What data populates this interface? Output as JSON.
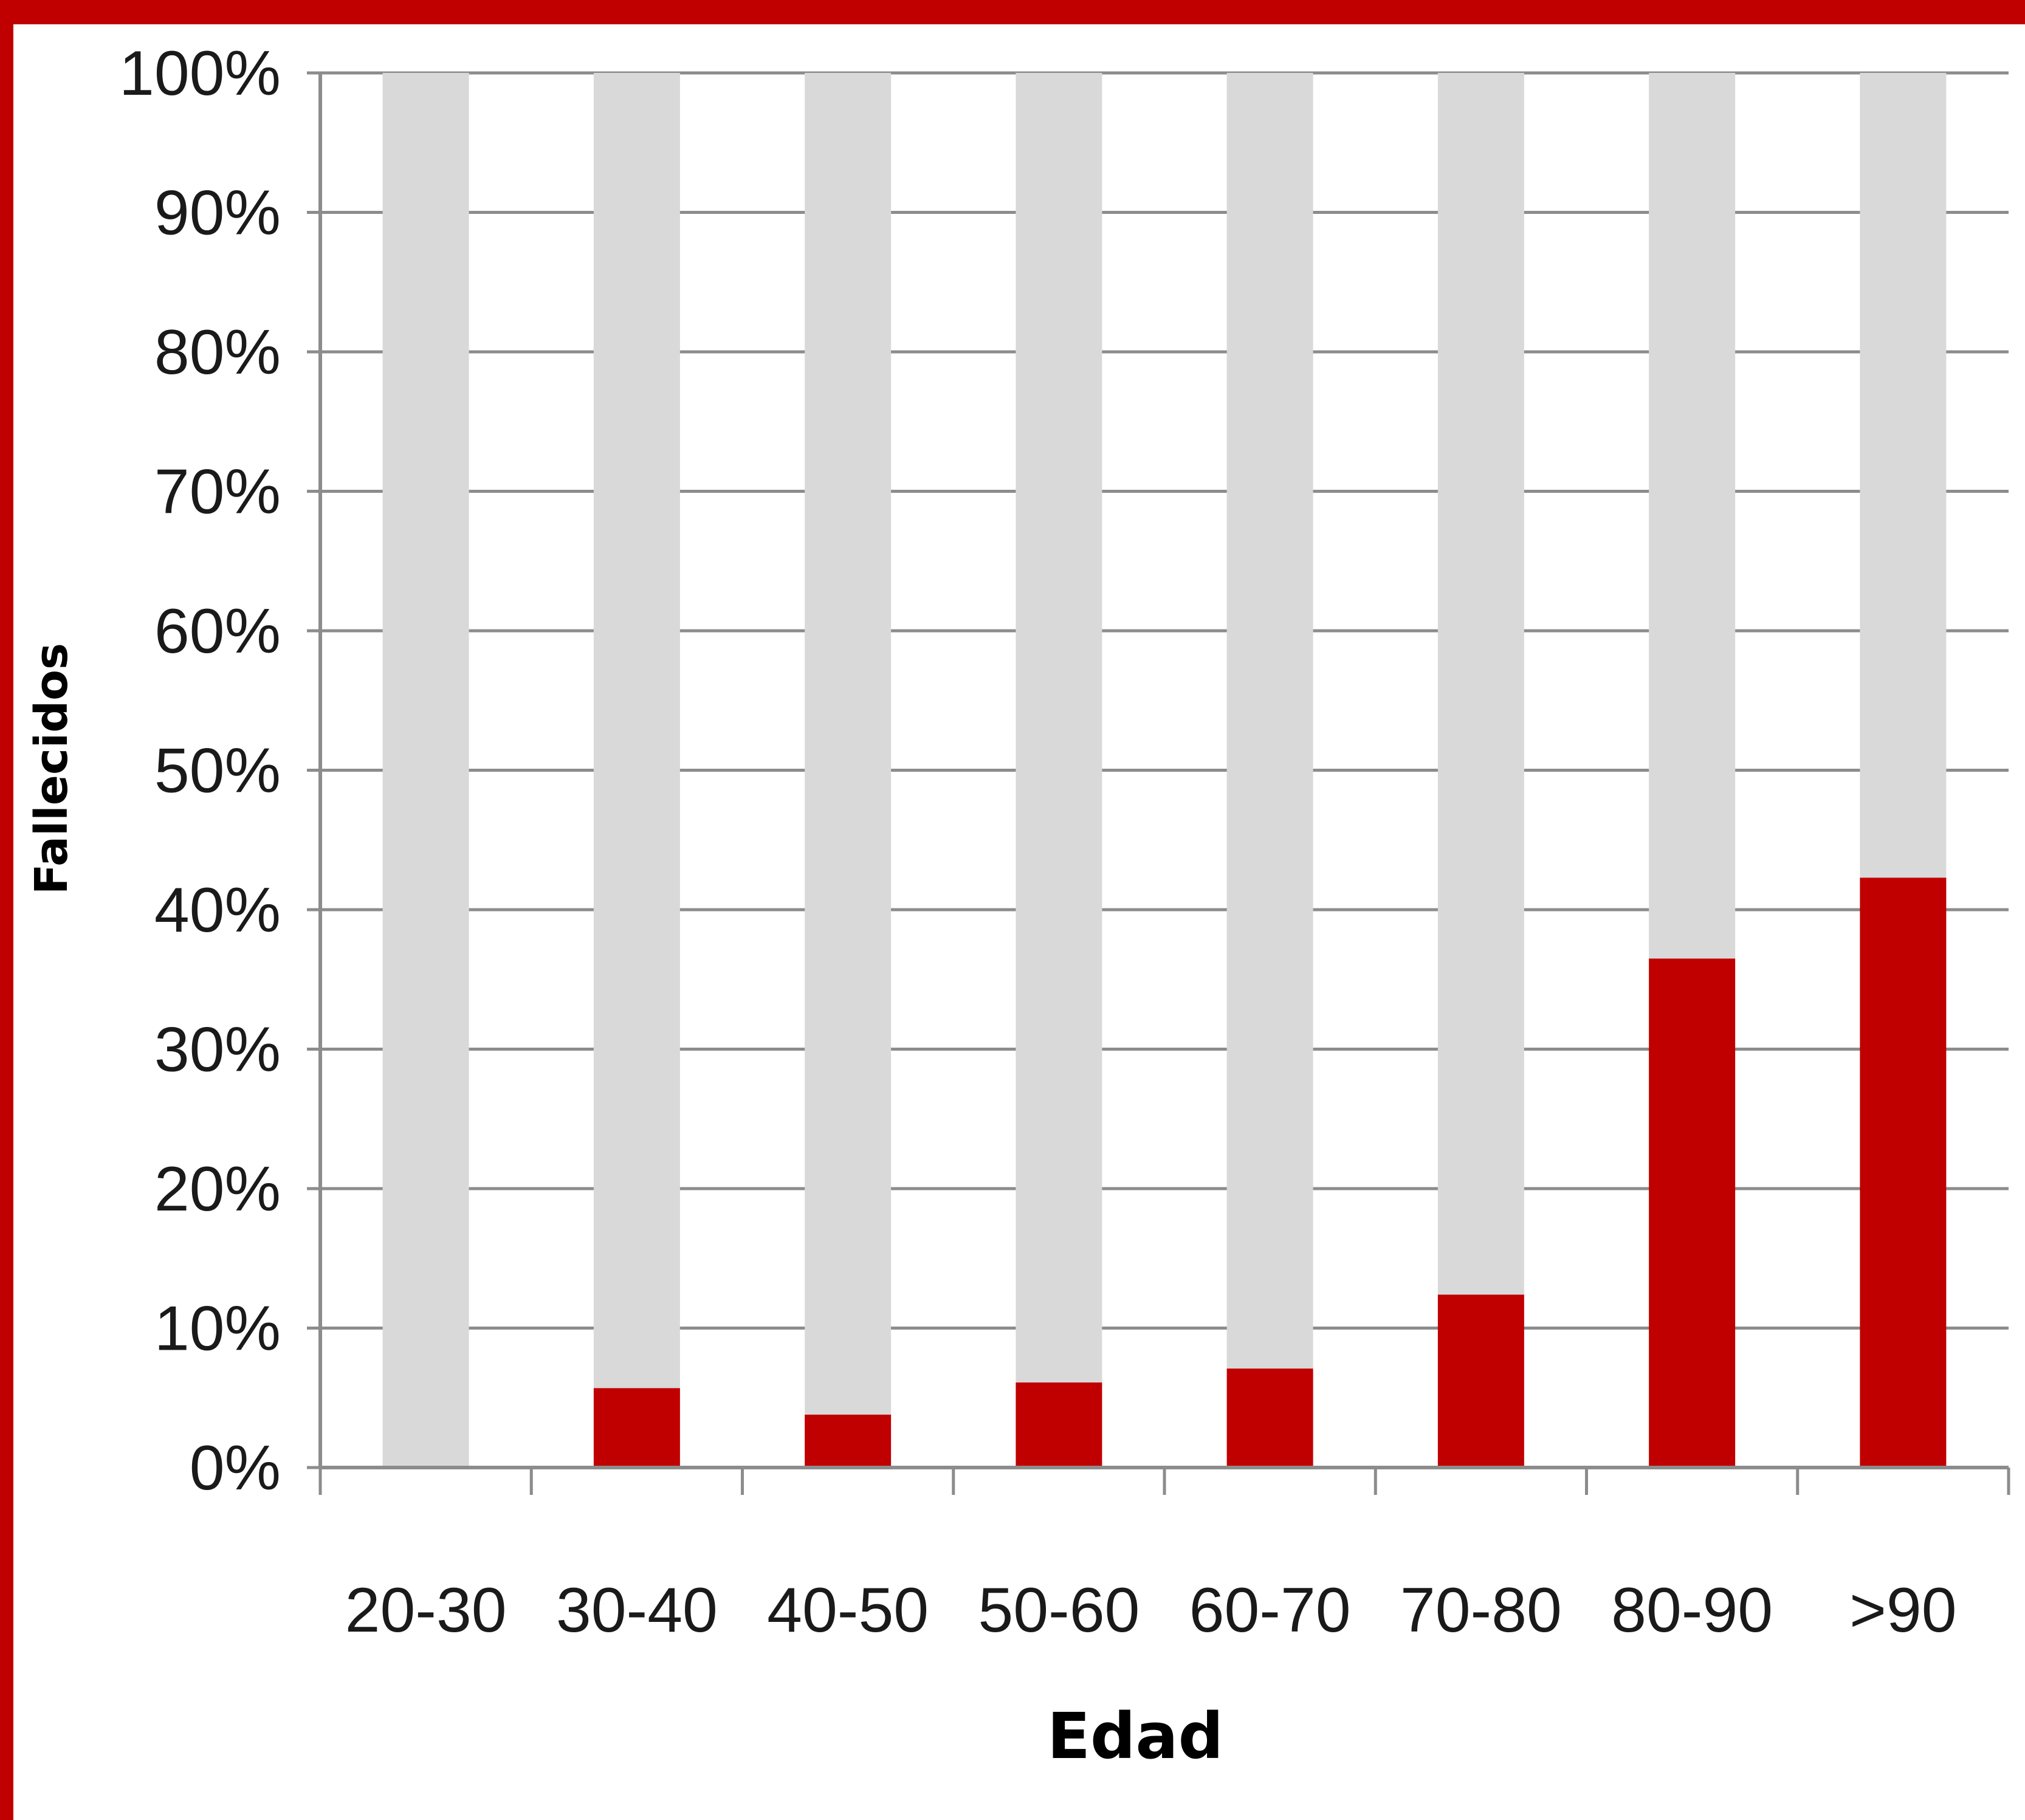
{
  "chart_data": {
    "type": "bar",
    "stacked": true,
    "percent_stacked": true,
    "xlabel": "Edad",
    "ylabel": "Fallecidos",
    "categories": [
      "20-30",
      "30-40",
      "40-50",
      "50-60",
      "60-70",
      "70-80",
      "80-90",
      ">90"
    ],
    "series": [
      {
        "values": [
          0,
          5.7,
          3.8,
          6.1,
          7.1,
          12.4,
          36.5,
          42.3
        ],
        "color": "#c00000"
      },
      {
        "values": [
          100,
          94.3,
          96.2,
          93.9,
          92.9,
          87.6,
          63.5,
          57.7
        ],
        "color": "#d9d9d9"
      }
    ],
    "ylim": [
      0,
      100
    ],
    "y_ticks": [
      "0%",
      "10%",
      "20%",
      "30%",
      "40%",
      "50%",
      "60%",
      "70%",
      "80%",
      "90%",
      "100%"
    ],
    "grid": true,
    "legend": "none",
    "frame_color": "#c00000",
    "gridline_color": "#8c8c8c"
  }
}
